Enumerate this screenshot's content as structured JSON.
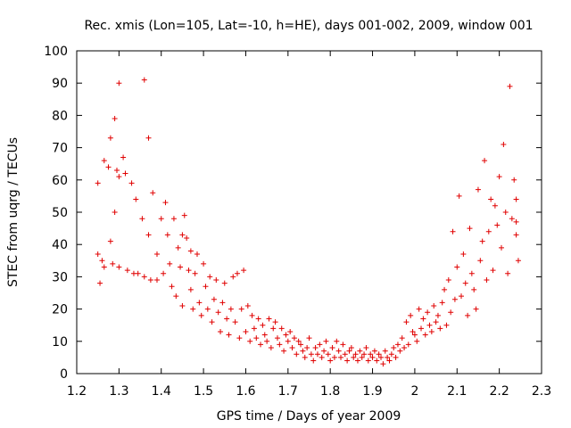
{
  "chart_data": {
    "type": "scatter",
    "title": "Rec. xmis (Lon=105, Lat=-10, h=HE), days 001-002, 2009, window 001",
    "xlabel": "GPS time / Days of year 2009",
    "ylabel": "STEC from uqrg / TECUs",
    "xlim": [
      1.2,
      2.3
    ],
    "ylim": [
      0,
      100
    ],
    "xticks": [
      1.2,
      1.3,
      1.4,
      1.5,
      1.6,
      1.7,
      1.8,
      1.9,
      2.0,
      2.1,
      2.2,
      2.3
    ],
    "xtick_labels": [
      "1.2",
      "1.3",
      "1.4",
      "1.5",
      "1.6",
      "1.7",
      "1.8",
      "1.9",
      "2",
      "2.1",
      "2.2",
      "2.3"
    ],
    "yticks": [
      0,
      10,
      20,
      30,
      40,
      50,
      60,
      70,
      80,
      90,
      100
    ],
    "ytick_labels": [
      "0",
      "10",
      "20",
      "30",
      "40",
      "50",
      "60",
      "70",
      "80",
      "90",
      "100"
    ],
    "grid": false,
    "marker": "+",
    "color": "#e00000",
    "series": [
      {
        "name": "STEC",
        "points": [
          [
            1.25,
            59
          ],
          [
            1.255,
            28
          ],
          [
            1.25,
            37
          ],
          [
            1.26,
            35
          ],
          [
            1.265,
            66
          ],
          [
            1.265,
            33
          ],
          [
            1.275,
            64
          ],
          [
            1.28,
            73
          ],
          [
            1.28,
            41
          ],
          [
            1.285,
            34
          ],
          [
            1.29,
            50
          ],
          [
            1.29,
            79
          ],
          [
            1.295,
            63
          ],
          [
            1.3,
            90
          ],
          [
            1.3,
            61
          ],
          [
            1.3,
            33
          ],
          [
            1.31,
            67
          ],
          [
            1.315,
            62
          ],
          [
            1.32,
            32
          ],
          [
            1.33,
            59
          ],
          [
            1.335,
            31
          ],
          [
            1.34,
            54
          ],
          [
            1.345,
            31
          ],
          [
            1.355,
            48
          ],
          [
            1.36,
            91
          ],
          [
            1.36,
            30
          ],
          [
            1.37,
            73
          ],
          [
            1.37,
            43
          ],
          [
            1.375,
            29
          ],
          [
            1.38,
            56
          ],
          [
            1.39,
            37
          ],
          [
            1.39,
            29
          ],
          [
            1.4,
            48
          ],
          [
            1.405,
            31
          ],
          [
            1.41,
            53
          ],
          [
            1.415,
            43
          ],
          [
            1.42,
            34
          ],
          [
            1.425,
            27
          ],
          [
            1.43,
            48
          ],
          [
            1.435,
            24
          ],
          [
            1.44,
            39
          ],
          [
            1.445,
            33
          ],
          [
            1.45,
            43
          ],
          [
            1.45,
            21
          ],
          [
            1.455,
            49
          ],
          [
            1.46,
            42
          ],
          [
            1.465,
            32
          ],
          [
            1.47,
            38
          ],
          [
            1.47,
            26
          ],
          [
            1.475,
            20
          ],
          [
            1.48,
            31
          ],
          [
            1.485,
            37
          ],
          [
            1.49,
            22
          ],
          [
            1.495,
            18
          ],
          [
            1.5,
            34
          ],
          [
            1.505,
            27
          ],
          [
            1.51,
            20
          ],
          [
            1.515,
            30
          ],
          [
            1.52,
            16
          ],
          [
            1.525,
            23
          ],
          [
            1.53,
            29
          ],
          [
            1.535,
            19
          ],
          [
            1.54,
            13
          ],
          [
            1.545,
            22
          ],
          [
            1.55,
            28
          ],
          [
            1.555,
            17
          ],
          [
            1.56,
            12
          ],
          [
            1.565,
            20
          ],
          [
            1.57,
            30
          ],
          [
            1.575,
            16
          ],
          [
            1.58,
            31
          ],
          [
            1.585,
            11
          ],
          [
            1.59,
            20
          ],
          [
            1.595,
            32
          ],
          [
            1.6,
            13
          ],
          [
            1.605,
            21
          ],
          [
            1.61,
            10
          ],
          [
            1.615,
            18
          ],
          [
            1.62,
            14
          ],
          [
            1.625,
            11
          ],
          [
            1.63,
            17
          ],
          [
            1.635,
            9
          ],
          [
            1.64,
            15
          ],
          [
            1.645,
            12
          ],
          [
            1.65,
            10
          ],
          [
            1.655,
            17
          ],
          [
            1.66,
            8
          ],
          [
            1.665,
            14
          ],
          [
            1.67,
            16
          ],
          [
            1.675,
            11
          ],
          [
            1.68,
            9
          ],
          [
            1.685,
            14
          ],
          [
            1.69,
            7
          ],
          [
            1.695,
            12
          ],
          [
            1.7,
            10
          ],
          [
            1.705,
            13
          ],
          [
            1.71,
            8
          ],
          [
            1.715,
            11
          ],
          [
            1.72,
            6
          ],
          [
            1.725,
            10
          ],
          [
            1.73,
            9
          ],
          [
            1.735,
            7
          ],
          [
            1.74,
            5
          ],
          [
            1.745,
            8
          ],
          [
            1.75,
            11
          ],
          [
            1.755,
            6
          ],
          [
            1.76,
            4
          ],
          [
            1.765,
            8
          ],
          [
            1.77,
            6
          ],
          [
            1.775,
            9
          ],
          [
            1.78,
            5
          ],
          [
            1.785,
            7
          ],
          [
            1.79,
            10
          ],
          [
            1.795,
            6
          ],
          [
            1.8,
            4
          ],
          [
            1.805,
            8
          ],
          [
            1.81,
            5
          ],
          [
            1.815,
            10
          ],
          [
            1.82,
            7
          ],
          [
            1.825,
            5
          ],
          [
            1.83,
            9
          ],
          [
            1.835,
            6
          ],
          [
            1.84,
            4
          ],
          [
            1.845,
            7
          ],
          [
            1.85,
            8
          ],
          [
            1.855,
            5
          ],
          [
            1.86,
            6
          ],
          [
            1.865,
            4
          ],
          [
            1.87,
            7
          ],
          [
            1.875,
            5
          ],
          [
            1.88,
            6
          ],
          [
            1.885,
            8
          ],
          [
            1.89,
            4
          ],
          [
            1.895,
            6
          ],
          [
            1.9,
            5
          ],
          [
            1.905,
            7
          ],
          [
            1.91,
            4
          ],
          [
            1.915,
            6
          ],
          [
            1.92,
            5
          ],
          [
            1.925,
            3
          ],
          [
            1.93,
            7
          ],
          [
            1.935,
            5
          ],
          [
            1.94,
            4
          ],
          [
            1.945,
            6
          ],
          [
            1.95,
            8
          ],
          [
            1.955,
            5
          ],
          [
            1.96,
            9
          ],
          [
            1.965,
            7
          ],
          [
            1.97,
            11
          ],
          [
            1.975,
            8
          ],
          [
            1.98,
            16
          ],
          [
            1.985,
            9
          ],
          [
            1.99,
            18
          ],
          [
            1.995,
            13
          ],
          [
            2.0,
            12
          ],
          [
            2.005,
            10
          ],
          [
            2.01,
            20
          ],
          [
            2.015,
            14
          ],
          [
            2.02,
            17
          ],
          [
            2.025,
            12
          ],
          [
            2.03,
            19
          ],
          [
            2.035,
            15
          ],
          [
            2.04,
            13
          ],
          [
            2.045,
            21
          ],
          [
            2.05,
            16
          ],
          [
            2.055,
            18
          ],
          [
            2.06,
            14
          ],
          [
            2.065,
            22
          ],
          [
            2.07,
            26
          ],
          [
            2.075,
            15
          ],
          [
            2.08,
            29
          ],
          [
            2.085,
            19
          ],
          [
            2.09,
            44
          ],
          [
            2.095,
            23
          ],
          [
            2.1,
            33
          ],
          [
            2.105,
            55
          ],
          [
            2.11,
            24
          ],
          [
            2.115,
            37
          ],
          [
            2.12,
            28
          ],
          [
            2.125,
            18
          ],
          [
            2.13,
            45
          ],
          [
            2.135,
            31
          ],
          [
            2.14,
            26
          ],
          [
            2.145,
            20
          ],
          [
            2.15,
            57
          ],
          [
            2.155,
            35
          ],
          [
            2.16,
            41
          ],
          [
            2.165,
            66
          ],
          [
            2.17,
            29
          ],
          [
            2.175,
            44
          ],
          [
            2.18,
            54
          ],
          [
            2.185,
            32
          ],
          [
            2.19,
            52
          ],
          [
            2.195,
            46
          ],
          [
            2.2,
            61
          ],
          [
            2.205,
            39
          ],
          [
            2.21,
            71
          ],
          [
            2.215,
            50
          ],
          [
            2.22,
            31
          ],
          [
            2.225,
            89
          ],
          [
            2.23,
            48
          ],
          [
            2.235,
            60
          ],
          [
            2.24,
            54
          ],
          [
            2.24,
            43
          ],
          [
            2.245,
            35
          ],
          [
            2.24,
            47
          ]
        ]
      }
    ]
  }
}
